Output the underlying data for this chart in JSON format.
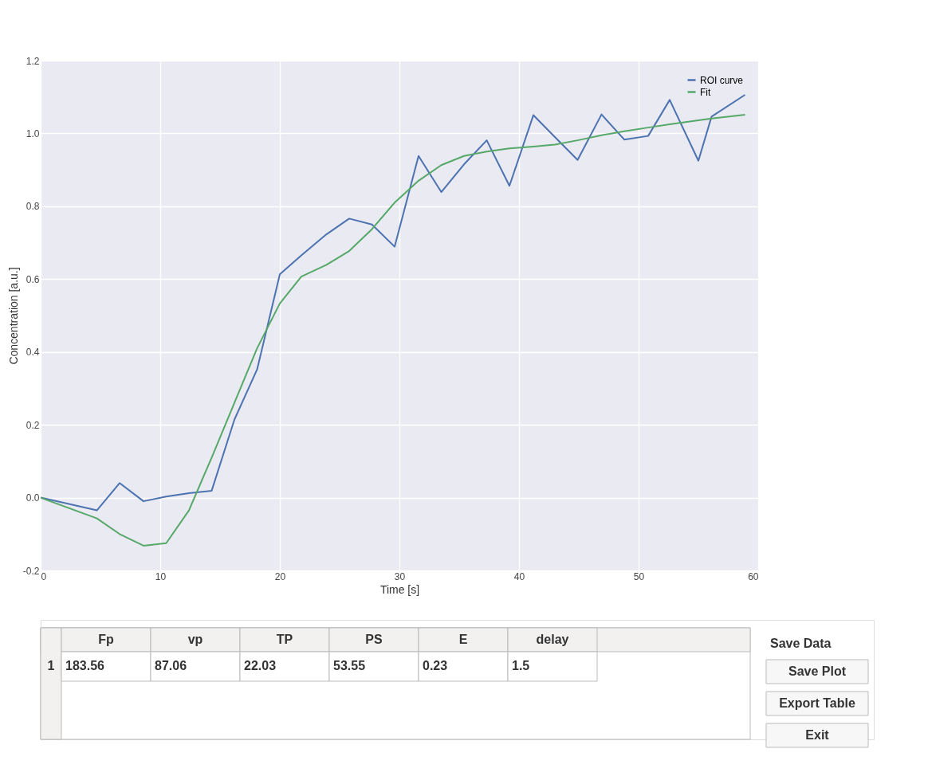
{
  "chart_data": [
    {
      "type": "line",
      "xlabel": "Time [s]",
      "ylabel": "Concentration [a.u.]",
      "series": [
        {
          "name": "ROI curve",
          "color": "#4c72b0",
          "x": [
            0,
            4.7,
            6.6,
            8.6,
            10.5,
            12.4,
            14.3,
            16.2,
            18.1,
            20.0,
            21.8,
            23.9,
            25.8,
            27.7,
            29.6,
            31.6,
            33.5,
            35.4,
            37.3,
            39.2,
            41.2,
            43.0,
            44.9,
            46.9,
            48.8,
            50.8,
            52.6,
            55.0,
            56.1,
            58.9
          ],
          "values": [
            0.0,
            -0.035,
            0.04,
            -0.01,
            0.003,
            0.012,
            0.019,
            0.214,
            0.352,
            0.613,
            0.665,
            0.723,
            0.766,
            0.75,
            0.689,
            0.938,
            0.839,
            0.915,
            0.981,
            0.856,
            1.05,
            0.99,
            0.927,
            1.052,
            0.983,
            0.993,
            1.092,
            0.925,
            1.046,
            1.106
          ]
        },
        {
          "name": "Fit",
          "color": "#55a868",
          "x": [
            0,
            4.7,
            6.6,
            8.6,
            10.5,
            12.4,
            14.3,
            16.2,
            18.1,
            20.0,
            21.8,
            23.9,
            25.8,
            27.7,
            29.6,
            31.6,
            33.5,
            35.4,
            37.3,
            39.2,
            41.2,
            43.0,
            44.9,
            46.9,
            48.8,
            50.8,
            52.6,
            55.0,
            56.1,
            58.9
          ],
          "values": [
            0.0,
            -0.057,
            -0.1,
            -0.132,
            -0.125,
            -0.035,
            0.11,
            0.26,
            0.41,
            0.533,
            0.607,
            0.639,
            0.677,
            0.737,
            0.81,
            0.87,
            0.913,
            0.938,
            0.95,
            0.959,
            0.964,
            0.969,
            0.981,
            0.995,
            1.006,
            1.016,
            1.025,
            1.036,
            1.041,
            1.051
          ]
        }
      ],
      "xlim": [
        0,
        60
      ],
      "xticks": [
        0,
        10,
        20,
        30,
        40,
        50,
        60
      ],
      "ylim": [
        -0.2,
        1.2
      ],
      "yticks": [
        {
          "value": -0.2,
          "label": "-0.2"
        },
        {
          "value": 0,
          "label": "0.0"
        },
        {
          "value": 0.2,
          "label": "0.2"
        },
        {
          "value": 0.4,
          "label": "0.4"
        },
        {
          "value": 0.6,
          "label": "0.6"
        },
        {
          "value": 0.8,
          "label": "0.8"
        },
        {
          "value": 1.0,
          "label": "1.0"
        },
        {
          "value": 1.2,
          "label": "1.2"
        }
      ],
      "grid": true,
      "legend": "top right",
      "line_style": "solid",
      "marker": "none"
    },
    {
      "type": "other",
      "title": "Save Data",
      "categories": [
        "Fp",
        "vp",
        "TP",
        "PS",
        "E",
        "delay"
      ],
      "annotations": [
        "1",
        "183.56",
        "87.06",
        "22.03",
        "53.55",
        "0.23",
        "1.5",
        "Save Plot",
        "Export Table",
        "Exit"
      ]
    }
  ]
}
